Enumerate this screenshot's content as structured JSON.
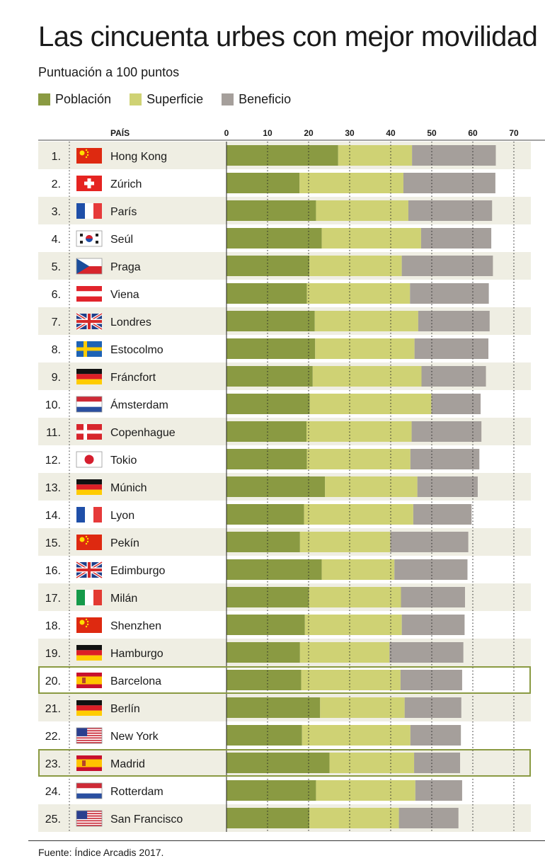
{
  "title": "Las cincuenta urbes con mejor movilidad",
  "subtitle": "Puntuación a 100 puntos",
  "legend": [
    {
      "label": "Población",
      "color": "#8a9a42"
    },
    {
      "label": "Superficie",
      "color": "#cfd274"
    },
    {
      "label": "Beneficio",
      "color": "#a59f9b"
    }
  ],
  "source": "Fuente: Índice Arcadis 2017.",
  "chart_data": {
    "type": "bar",
    "orientation": "horizontal",
    "stacked": true,
    "column_header": "PAÍS",
    "xlim": [
      0,
      72
    ],
    "xticks": [
      0,
      10,
      20,
      30,
      40,
      50,
      60,
      70
    ],
    "grid": "dotted vertical",
    "categories": [
      "Hong Kong",
      "Zúrich",
      "París",
      "Seúl",
      "Praga",
      "Viena",
      "Londres",
      "Estocolmo",
      "Fráncfort",
      "Ámsterdam",
      "Copenhague",
      "Tokio",
      "Múnich",
      "Lyon",
      "Pekín",
      "Edimburgo",
      "Milán",
      "Shenzhen",
      "Hamburgo",
      "Barcelona",
      "Berlín",
      "New York",
      "Madrid",
      "Rotterdam",
      "San Francisco"
    ],
    "ranks": [
      "1.",
      "2.",
      "3.",
      "4.",
      "5.",
      "6.",
      "7.",
      "8.",
      "9.",
      "10.",
      "11.",
      "12.",
      "13.",
      "14.",
      "15.",
      "16.",
      "17.",
      "18.",
      "19.",
      "20.",
      "21.",
      "22.",
      "23.",
      "24.",
      "25."
    ],
    "flags": [
      "china",
      "switzerland",
      "france",
      "south-korea",
      "czech-republic",
      "austria",
      "united-kingdom",
      "sweden",
      "germany",
      "netherlands",
      "denmark",
      "japan",
      "germany",
      "france",
      "china",
      "united-kingdom",
      "italy",
      "china",
      "germany",
      "spain",
      "germany",
      "usa",
      "spain",
      "netherlands",
      "usa"
    ],
    "highlighted": [
      "Barcelona",
      "Madrid"
    ],
    "series": [
      {
        "name": "Población",
        "values": [
          27.2,
          17.8,
          21.8,
          23.2,
          20.2,
          19.6,
          21.5,
          21.6,
          21.0,
          20.3,
          19.5,
          19.6,
          24.0,
          18.9,
          17.9,
          23.2,
          20.1,
          19.1,
          17.9,
          18.2,
          22.8,
          18.4,
          25.1,
          21.8,
          20.2
        ]
      },
      {
        "name": "Superficie",
        "values": [
          18.0,
          25.3,
          22.5,
          24.2,
          22.5,
          25.1,
          25.2,
          24.2,
          26.5,
          29.6,
          25.6,
          25.2,
          22.5,
          26.6,
          22.0,
          17.7,
          22.4,
          23.6,
          21.8,
          24.2,
          20.6,
          26.4,
          20.6,
          24.2,
          21.8
        ]
      },
      {
        "name": "Beneficio",
        "values": [
          20.4,
          22.4,
          20.4,
          17.1,
          22.2,
          19.2,
          17.4,
          18.0,
          15.7,
          12.0,
          17.0,
          16.8,
          14.7,
          14.2,
          19.0,
          17.8,
          15.6,
          15.3,
          18.0,
          15.0,
          13.8,
          12.3,
          11.2,
          11.4,
          14.5
        ]
      }
    ]
  }
}
